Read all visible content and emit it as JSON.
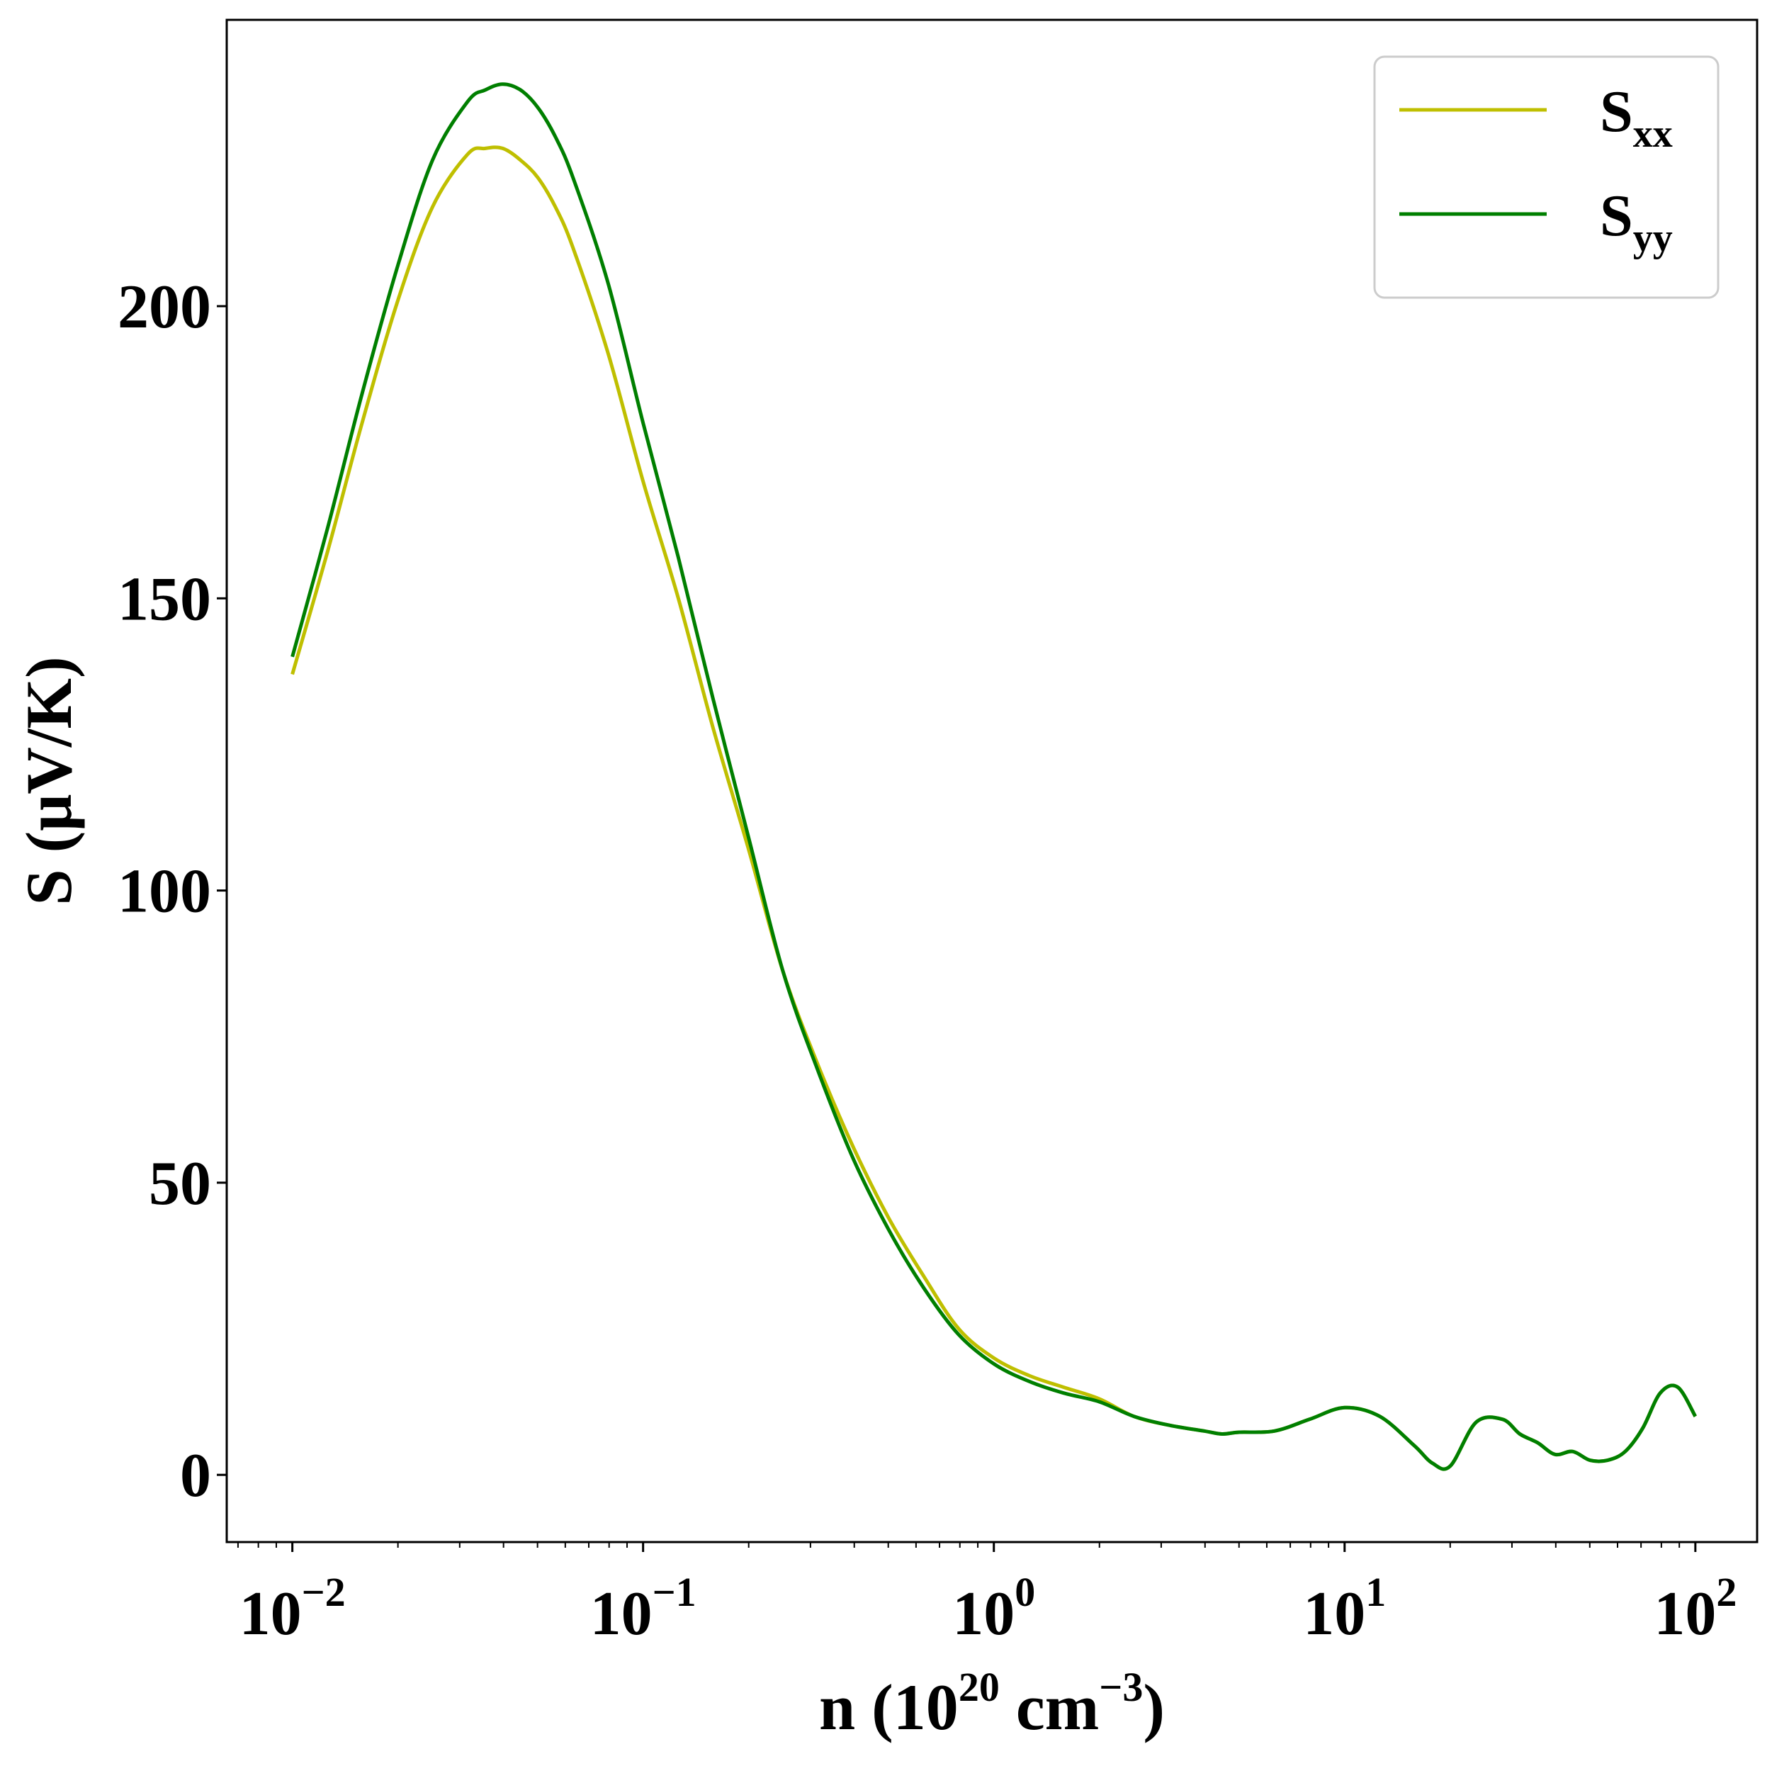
{
  "chart_data": {
    "type": "line",
    "xscale": "log",
    "xlim": [
      0.0065,
      150
    ],
    "ylim": [
      -11.5,
      249
    ],
    "xlabel": {
      "prefix": "n (10",
      "exp": "20",
      "mid": " cm",
      "exp2": "−3",
      "suffix": ")"
    },
    "ylabel": "S (μV/K)",
    "x_ticks": [
      {
        "base": "10",
        "exp": "−2",
        "value": 0.01
      },
      {
        "base": "10",
        "exp": "−1",
        "value": 0.1
      },
      {
        "base": "10",
        "exp": "0",
        "value": 1
      },
      {
        "base": "10",
        "exp": "1",
        "value": 10
      },
      {
        "base": "10",
        "exp": "2",
        "value": 100
      }
    ],
    "y_ticks": [
      {
        "label": "0",
        "value": 0
      },
      {
        "label": "50",
        "value": 50
      },
      {
        "label": "100",
        "value": 100
      },
      {
        "label": "150",
        "value": 150
      },
      {
        "label": "200",
        "value": 200
      }
    ],
    "grid": false,
    "legend": {
      "position": "top-right"
    },
    "series": [
      {
        "name": "S_xx",
        "label_main": "S",
        "label_sub": "xx",
        "color": "#bfbf00",
        "x": [
          0.01,
          0.0126,
          0.0158,
          0.02,
          0.0251,
          0.0316,
          0.0355,
          0.0398,
          0.0447,
          0.0501,
          0.0562,
          0.0631,
          0.0794,
          0.1,
          0.126,
          0.158,
          0.2,
          0.251,
          0.316,
          0.398,
          0.501,
          0.631,
          0.794,
          1.0,
          1.26,
          1.58,
          2.0,
          2.51,
          3.16,
          3.98,
          4.47,
          5.01,
          6.31,
          7.94,
          10.0,
          12.6,
          15.8,
          17.8,
          20.0,
          23.7,
          28.2,
          31.6,
          35.5,
          39.8,
          44.7,
          50.1,
          56.2,
          63.1,
          70.8,
          79.4,
          89.1,
          100
        ],
        "y": [
          137,
          158,
          180,
          201,
          217,
          226,
          227,
          227,
          225,
          222,
          217,
          210,
          192,
          170,
          150,
          128,
          107,
          86,
          70,
          56,
          44,
          34,
          25,
          20,
          17,
          15,
          13,
          10,
          8.5,
          7.5,
          7,
          7.3,
          7.5,
          9.5,
          11.5,
          10,
          5,
          2,
          1.5,
          9,
          9.5,
          7,
          5.5,
          3.5,
          4,
          2.5,
          2.5,
          4,
          8,
          14,
          15,
          10
        ]
      },
      {
        "name": "S_yy",
        "label_main": "S",
        "label_sub": "yy",
        "color": "#007f00",
        "x": [
          0.01,
          0.0126,
          0.0158,
          0.02,
          0.0251,
          0.0316,
          0.0355,
          0.0398,
          0.0447,
          0.0501,
          0.0562,
          0.0631,
          0.0794,
          0.1,
          0.126,
          0.158,
          0.2,
          0.251,
          0.316,
          0.398,
          0.501,
          0.631,
          0.794,
          1.0,
          1.26,
          1.58,
          2.0,
          2.51,
          3.16,
          3.98,
          4.47,
          5.01,
          6.31,
          7.94,
          10.0,
          12.6,
          15.8,
          17.8,
          20.0,
          23.7,
          28.2,
          31.6,
          35.5,
          39.8,
          44.7,
          50.1,
          56.2,
          63.1,
          70.8,
          79.4,
          89.1,
          100
        ],
        "y": [
          140,
          162,
          185,
          207,
          225,
          235,
          237,
          238,
          237,
          234,
          229,
          222,
          204,
          180,
          157,
          133,
          109,
          86,
          69,
          54,
          42,
          32,
          24,
          19,
          16,
          14,
          12.5,
          10,
          8.5,
          7.5,
          7,
          7.3,
          7.5,
          9.5,
          11.5,
          10,
          5,
          2,
          1.5,
          9,
          9.5,
          7,
          5.5,
          3.5,
          4,
          2.5,
          2.5,
          4,
          8,
          14,
          15,
          10
        ]
      }
    ]
  }
}
